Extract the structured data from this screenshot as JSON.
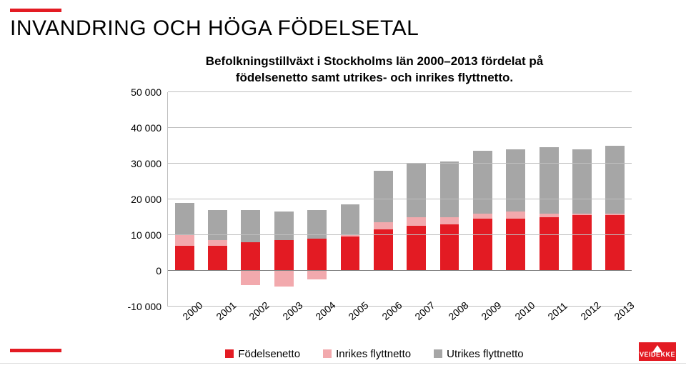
{
  "page": {
    "background_color": "#ffffff",
    "accent_color": "#e31b23",
    "text_color": "#000000",
    "title": "INVANDRING OCH HÖGA FÖDELSETAL"
  },
  "chart": {
    "type": "stacked-bar",
    "title": "Befolkningstillväxt i Stockholms län 2000–2013 fördelat på födelsenetto samt utrikes- och inrikes flyttnetto.",
    "title_fontsize": 17,
    "label_fontsize": 14,
    "grid_color": "#bfbfbf",
    "axis_color": "#808080",
    "ylim": [
      -10000,
      50000
    ],
    "ytick_step": 10000,
    "y_ticks": [
      "-10 000",
      "0",
      "10 000",
      "20 000",
      "30 000",
      "40 000",
      "50 000"
    ],
    "categories": [
      "2000",
      "2001",
      "2002",
      "2003",
      "2004",
      "2005",
      "2006",
      "2007",
      "2008",
      "2009",
      "2010",
      "2011",
      "2012",
      "2013"
    ],
    "bar_width": 0.58,
    "series": [
      {
        "key": "fodelsenetto",
        "label": "Födelsenetto",
        "color": "#e31b23",
        "values": [
          7000,
          7000,
          8000,
          8500,
          9000,
          9500,
          11500,
          12500,
          13000,
          14500,
          14500,
          15000,
          15500,
          15500
        ]
      },
      {
        "key": "inrikes",
        "label": "Inrikes flyttnetto",
        "color": "#f2a9ad",
        "values": [
          3000,
          1500,
          -4000,
          -4500,
          -2500,
          500,
          2000,
          2500,
          2000,
          1500,
          2000,
          1000,
          500,
          500
        ]
      },
      {
        "key": "utrikes",
        "label": "Utrikes flyttnetto",
        "color": "#a6a6a6",
        "values": [
          9000,
          8500,
          9000,
          8000,
          8000,
          8500,
          14500,
          15000,
          15500,
          17500,
          17500,
          18500,
          18000,
          19000
        ]
      }
    ]
  },
  "logo": {
    "text": "VEIDEKKE",
    "bg_color": "#e31b23",
    "triangle_color": "#ffffff"
  }
}
